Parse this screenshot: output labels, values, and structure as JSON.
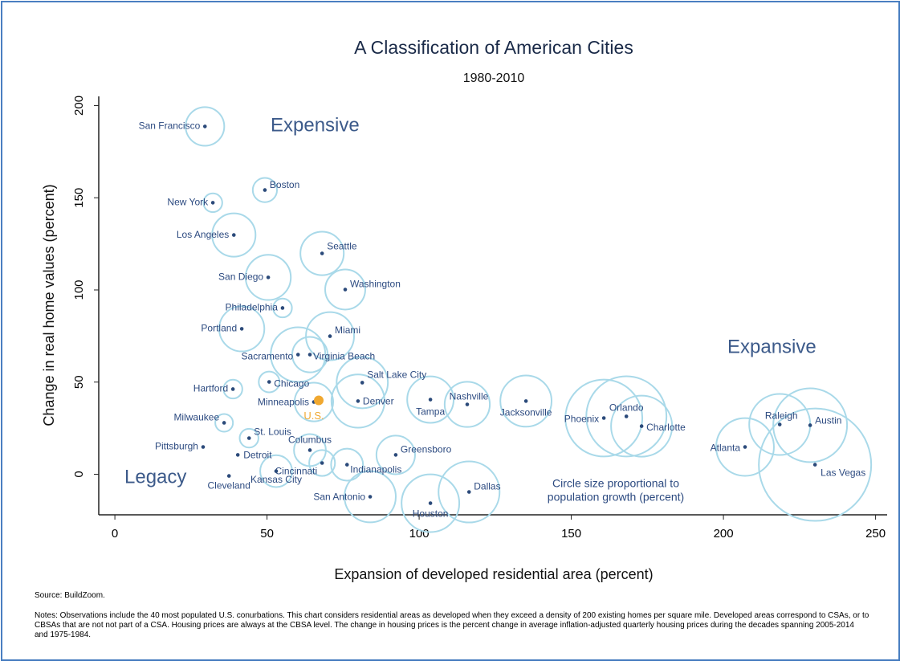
{
  "chart_data": {
    "type": "bubble",
    "title": "A Classification of American Cities",
    "subtitle": "1980-2010",
    "x_label": "Expansion of developed residential area (percent)",
    "y_label": "Change in real home values (percent)",
    "xlim": [
      -5.3,
      253.8
    ],
    "xticks": [
      0,
      50,
      100,
      150,
      200,
      250
    ],
    "ylim": [
      -22,
      205
    ],
    "yticks": [
      0,
      50,
      100,
      150,
      200
    ],
    "bubble_color": "#a9d9e9",
    "dot_color": "#2b4a7a",
    "label_color": "#2c4a80",
    "points": [
      {
        "label": "San Francisco",
        "x": 29.6,
        "y": 188.7,
        "size": 38
      },
      {
        "label": "Boston",
        "x": 49.3,
        "y": 154.2,
        "size": 15
      },
      {
        "label": "New York",
        "x": 32.2,
        "y": 147.3,
        "size": 9
      },
      {
        "label": "Los Angeles",
        "x": 39.1,
        "y": 129.8,
        "size": 48
      },
      {
        "label": "Seattle",
        "x": 68.1,
        "y": 119.8,
        "size": 48
      },
      {
        "label": "San Diego",
        "x": 50.4,
        "y": 106.8,
        "size": 52
      },
      {
        "label": "Washington",
        "x": 75.7,
        "y": 100.2,
        "size": 41
      },
      {
        "label": "Philadelphia",
        "x": 55.1,
        "y": 90.2,
        "size": 9
      },
      {
        "label": "Portland",
        "x": 41.7,
        "y": 78.9,
        "size": 52
      },
      {
        "label": "Miami",
        "x": 70.7,
        "y": 74.9,
        "size": 59
      },
      {
        "label": "Sacramento",
        "x": 60.2,
        "y": 64.9,
        "size": 76
      },
      {
        "label": "Virginia Beach",
        "x": 64.1,
        "y": 64.9,
        "size": 32
      },
      {
        "label": "Salt Lake City",
        "x": 81.3,
        "y": 49.7,
        "size": 67
      },
      {
        "label": "Chicago",
        "x": 50.7,
        "y": 50.1,
        "size": 11
      },
      {
        "label": "Hartford",
        "x": 38.8,
        "y": 46.2,
        "size": 9
      },
      {
        "label": "Minneapolis",
        "x": 65.4,
        "y": 39.2,
        "size": 38
      },
      {
        "label": "Denver",
        "x": 79.9,
        "y": 39.7,
        "size": 72
      },
      {
        "label": "Tampa",
        "x": 103.7,
        "y": 40.5,
        "size": 55
      },
      {
        "label": "Nashville",
        "x": 115.8,
        "y": 37.9,
        "size": 52
      },
      {
        "label": "Jacksonville",
        "x": 135.1,
        "y": 39.7,
        "size": 67
      },
      {
        "label": "Phoenix",
        "x": 160.7,
        "y": 30.5,
        "size": 151
      },
      {
        "label": "Orlando",
        "x": 168.1,
        "y": 31.4,
        "size": 164
      },
      {
        "label": "Charlotte",
        "x": 173.1,
        "y": 26.1,
        "size": 95
      },
      {
        "label": "Atlanta",
        "x": 207.1,
        "y": 14.8,
        "size": 85
      },
      {
        "label": "Raleigh",
        "x": 218.5,
        "y": 27.0,
        "size": 95
      },
      {
        "label": "Austin",
        "x": 228.5,
        "y": 26.6,
        "size": 139
      },
      {
        "label": "Las Vegas",
        "x": 230.1,
        "y": 5.2,
        "size": 322
      },
      {
        "label": "Milwaukee",
        "x": 35.9,
        "y": 27.9,
        "size": 8
      },
      {
        "label": "St. Louis",
        "x": 44.1,
        "y": 19.6,
        "size": 9
      },
      {
        "label": "Pittsburgh",
        "x": 29.0,
        "y": 14.8,
        "size": 0
      },
      {
        "label": "Detroit",
        "x": 40.4,
        "y": 10.5,
        "size": 0
      },
      {
        "label": "Columbus",
        "x": 64.1,
        "y": 13.1,
        "size": 26
      },
      {
        "label": "Greensboro",
        "x": 92.3,
        "y": 10.5,
        "size": 38
      },
      {
        "label": "Cincinnati",
        "x": 68.1,
        "y": 6.1,
        "size": 17
      },
      {
        "label": "Indianapolis",
        "x": 76.3,
        "y": 5.2,
        "size": 26
      },
      {
        "label": "Kansas City",
        "x": 53.0,
        "y": 1.7,
        "size": 26
      },
      {
        "label": "San Antonio",
        "x": 83.9,
        "y": -12.2,
        "size": 67
      },
      {
        "label": "Houston",
        "x": 103.7,
        "y": -15.7,
        "size": 85
      },
      {
        "label": "Dallas",
        "x": 116.4,
        "y": -9.6,
        "size": 95
      },
      {
        "label": "Cleveland",
        "x": 37.5,
        "y": -0.9,
        "size": 0
      }
    ],
    "reference": {
      "label": "U.S.",
      "x": 67.0,
      "y": 40.1,
      "color": "#f0a830"
    },
    "annotations": [
      "Expensive",
      "Expansive",
      "Legacy"
    ],
    "size_note": [
      "Circle size proportional to",
      "population growth (percent)"
    ],
    "source": "Source: BuildZoom.",
    "notes": "Notes: Observations include the 40 most populated U.S. conurbations. This chart considers residential areas as developed when they exceed a density of 200 existing homes per square mile. Developed areas correspond to CSAs, or to CBSAs that are not not part of a CSA. Housing prices are always at the CBSA level. The change in housing prices is the percent change in average inflation-adjusted quarterly housing prices during the decades spanning 2005-2014 and 1975-1984."
  }
}
